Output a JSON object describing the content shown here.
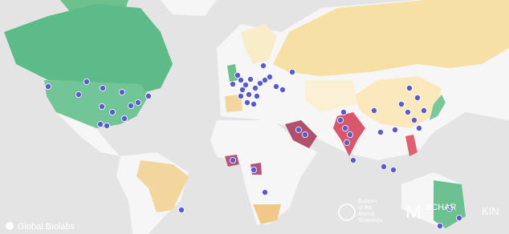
{
  "source": "Global Biolabs",
  "logos": {
    "bulletin": [
      "Bulletin",
      "of the",
      "Atomic",
      "Scientists"
    ],
    "schar": "SCHAR",
    "kings": "KIN"
  }
}
